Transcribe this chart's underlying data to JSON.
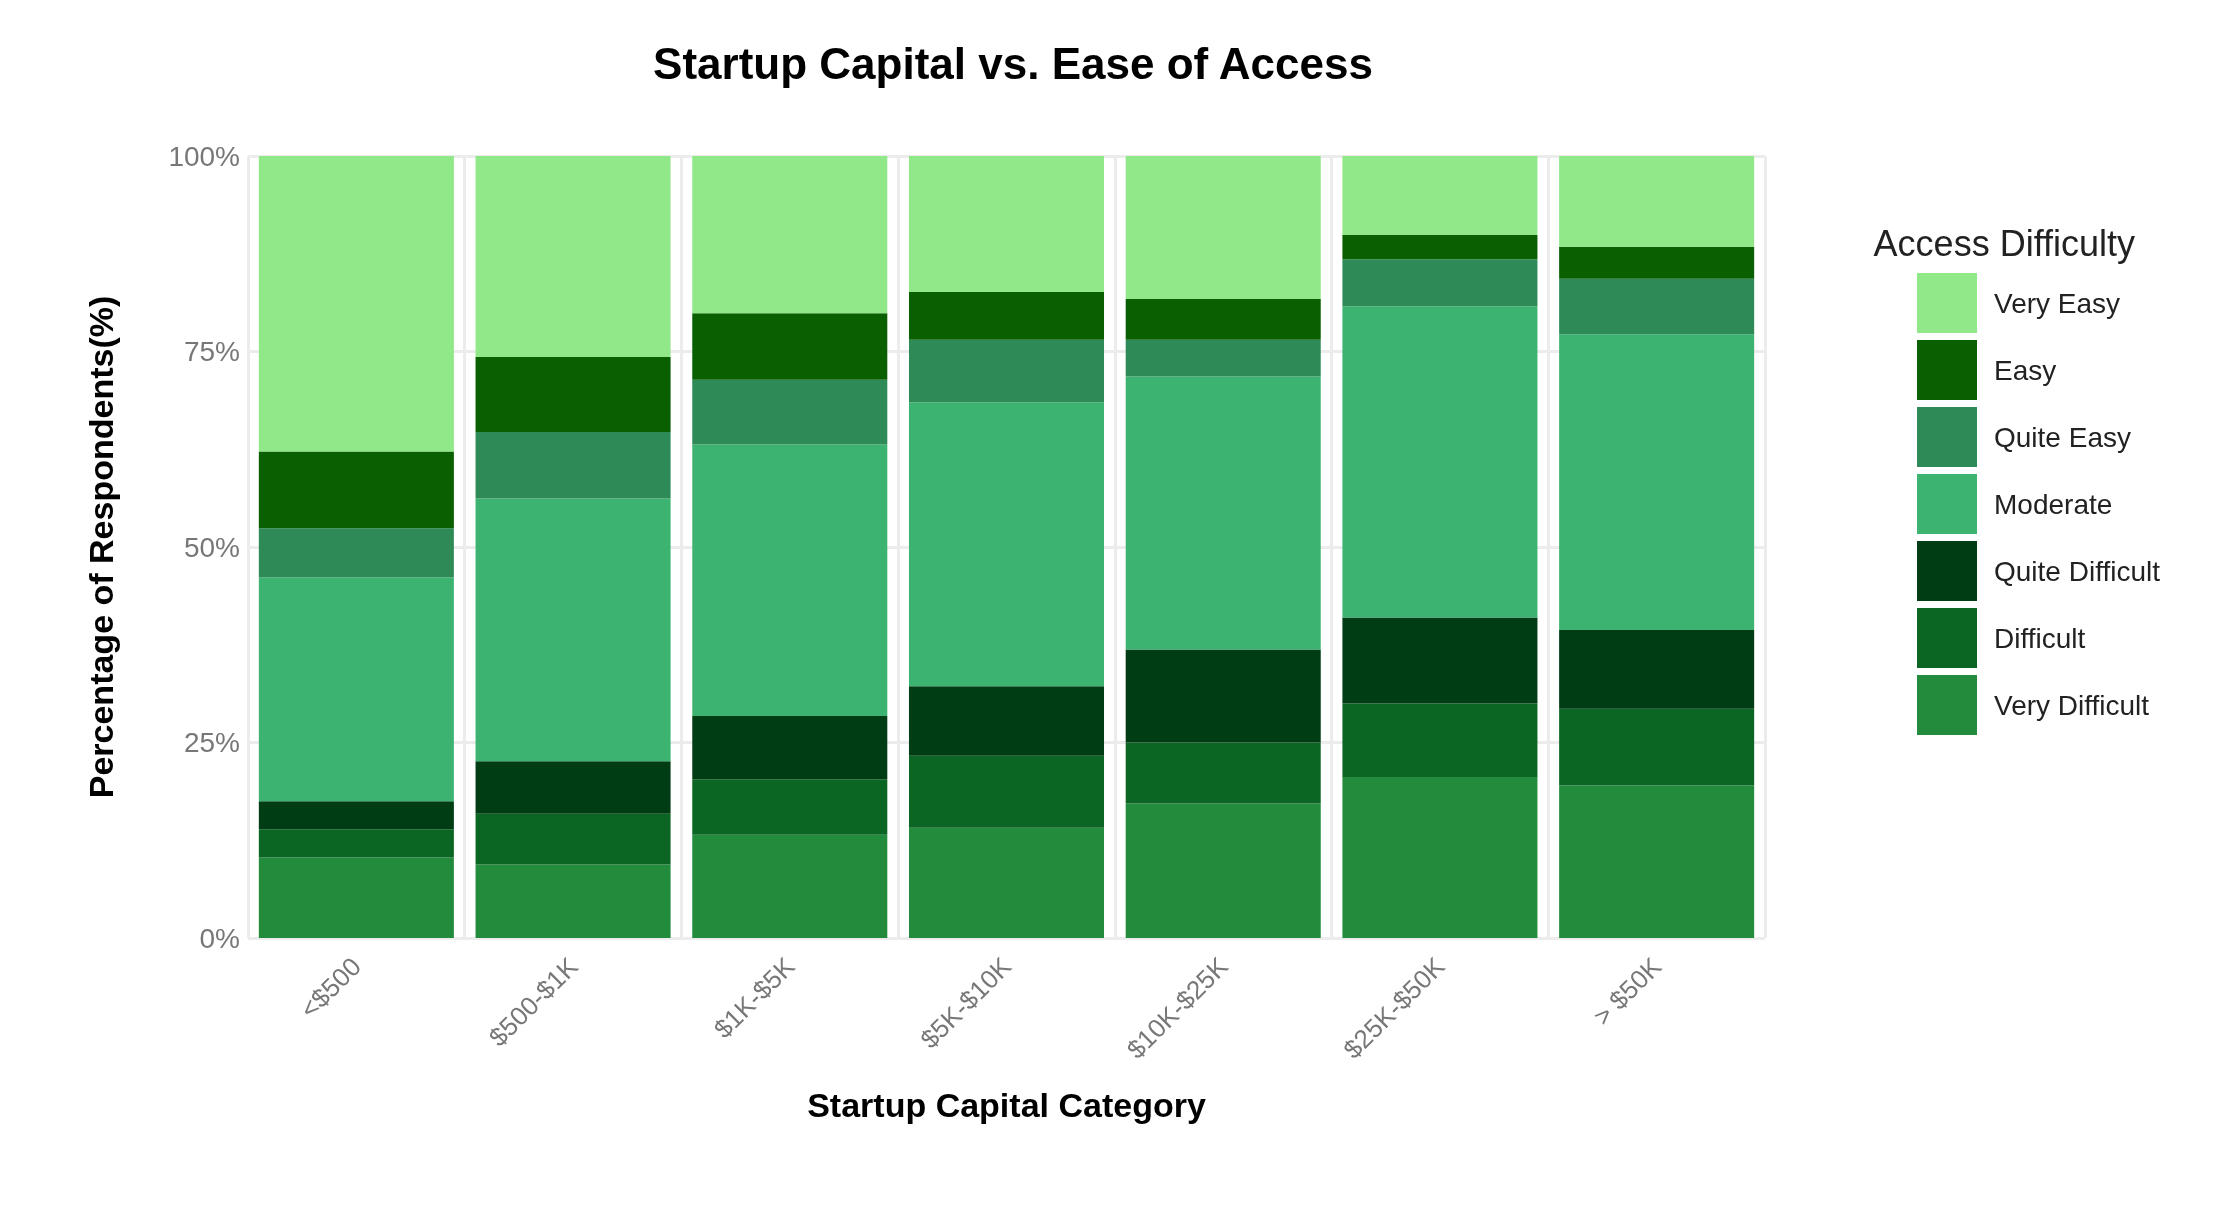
{
  "chart_data": {
    "type": "bar",
    "stacked": true,
    "title": "Startup Capital vs. Ease of Access",
    "xlabel": "Startup Capital Category",
    "ylabel": "Percentage of Respondents(%)",
    "legend_title": "Access Difficulty",
    "legend": "right",
    "grid": true,
    "categories": [
      "<$500",
      "$500-$1K",
      "$1K-$5K",
      "$5K-$10K",
      "$10K-$25K",
      "$25K-$50K",
      "> $50K"
    ],
    "ylim": [
      0,
      100
    ],
    "yticks": [
      {
        "value": 0,
        "label": "0%"
      },
      {
        "value": 25,
        "label": "25%"
      },
      {
        "value": 50,
        "label": "50%"
      },
      {
        "value": 75,
        "label": "75%"
      },
      {
        "value": 100,
        "label": "100%"
      }
    ],
    "series": [
      {
        "name": "Very Difficult",
        "color": "#228b3c",
        "values": [
          10.3,
          9.4,
          13.2,
          14.1,
          17.2,
          20.6,
          19.5
        ]
      },
      {
        "name": "Difficult",
        "color": "#0b6623",
        "values": [
          3.6,
          6.5,
          7.1,
          9.2,
          7.8,
          9.4,
          9.8
        ]
      },
      {
        "name": "Quite Difficult",
        "color": "#003d14",
        "values": [
          3.6,
          6.7,
          8.1,
          8.9,
          11.9,
          11.0,
          10.1
        ]
      },
      {
        "name": "Moderate",
        "color": "#3cb371",
        "values": [
          28.6,
          33.6,
          34.7,
          36.3,
          34.9,
          39.8,
          37.8
        ]
      },
      {
        "name": "Quite Easy",
        "color": "#2e8b57",
        "values": [
          6.3,
          8.5,
          8.3,
          8.0,
          4.7,
          6.0,
          7.1
        ]
      },
      {
        "name": "Easy",
        "color": "#0a5f00",
        "values": [
          9.8,
          9.6,
          8.5,
          6.1,
          5.2,
          3.1,
          4.1
        ]
      },
      {
        "name": "Very Easy",
        "color": "#90e888",
        "values": [
          37.8,
          25.7,
          20.1,
          17.4,
          18.3,
          10.1,
          11.6
        ]
      }
    ]
  }
}
